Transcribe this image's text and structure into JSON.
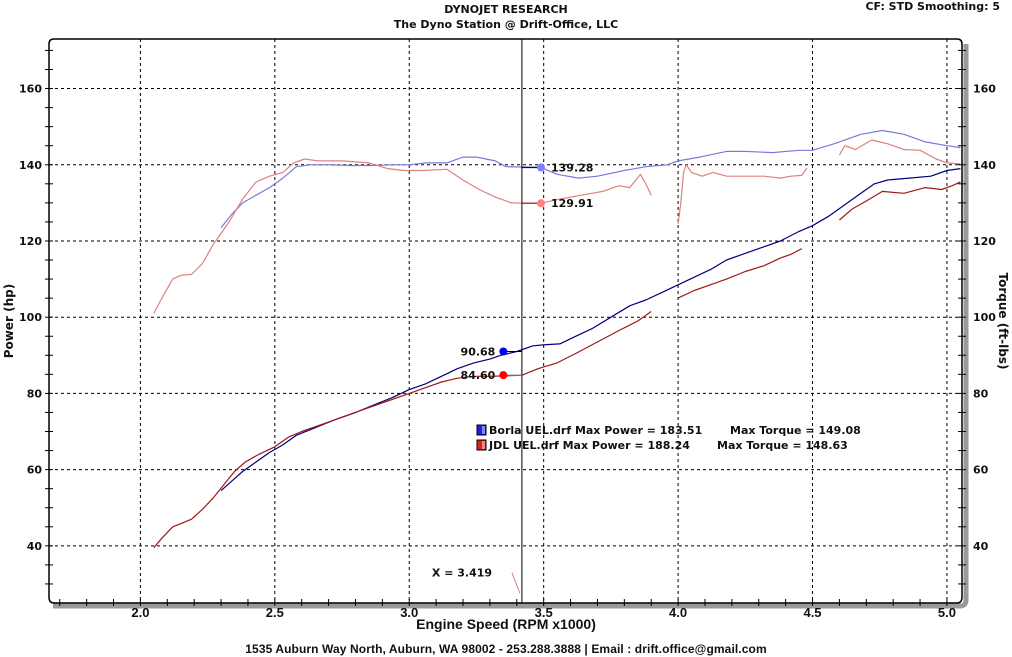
{
  "header": {
    "title": "DYNOJET RESEARCH",
    "subtitle": "The Dyno Station @ Drift-Office, LLC",
    "cf_info": "CF: STD  Smoothing: 5"
  },
  "footer": {
    "text": "1535 Auburn Way North, Auburn, WA 98002 - 253.288.3888 | Email : drift.office@gmail.com"
  },
  "chart_data": {
    "type": "line",
    "title": "DYNOJET RESEARCH",
    "xlabel": "Engine Speed (RPM x1000)",
    "ylabel": "Power (hp)",
    "y2label": "Torque (ft-lbs)",
    "xlim": [
      1.66,
      5.056
    ],
    "ylim": [
      25,
      173
    ],
    "y2lim": [
      25,
      173
    ],
    "grid": true,
    "xticks": [
      "2.0",
      "2.5",
      "3.0",
      "3.5",
      "4.0",
      "4.5",
      "5.0"
    ],
    "xtick_values": [
      2.0,
      2.5,
      3.0,
      3.5,
      4.0,
      4.5,
      5.0
    ],
    "yticks": [
      "40",
      "60",
      "80",
      "100",
      "120",
      "140",
      "160"
    ],
    "ytick_values": [
      40,
      60,
      80,
      100,
      120,
      140,
      160
    ],
    "legend_position": "center",
    "legend": [
      {
        "file": "Borla UEL.drf",
        "label": "Borla UEL.drf Max Power = 183.51",
        "torque_label": "Max Torque = 149.08",
        "color": "#2020e0"
      },
      {
        "file": "JDL UEL.drf",
        "label": "JDL UEL.drf Max Power = 188.24",
        "torque_label": "Max Torque = 148.63",
        "color": "#e02020"
      }
    ],
    "cursor": {
      "x": 3.419,
      "label": "X = 3.419"
    },
    "annotations": [
      {
        "series": "borla_torque",
        "value": "139.28",
        "color": "#7f7fff"
      },
      {
        "series": "jdl_torque",
        "value": "129.91",
        "color": "#ff7f7f"
      },
      {
        "series": "borla_power",
        "value": "90.68",
        "color": "#0000ff"
      },
      {
        "series": "jdl_power",
        "value": "84.60",
        "color": "#ff0000"
      }
    ],
    "series": [
      {
        "name": "Borla Torque",
        "id": "borla_torque",
        "color": "#7a7adc",
        "segments": [
          [
            [
              2.3,
              123.5
            ],
            [
              2.34,
              127.0
            ],
            [
              2.38,
              130.0
            ],
            [
              2.43,
              132.0
            ],
            [
              2.48,
              134.0
            ],
            [
              2.53,
              136.5
            ],
            [
              2.58,
              139.5
            ],
            [
              2.63,
              140.0
            ],
            [
              2.7,
              140.0
            ],
            [
              2.78,
              139.8
            ],
            [
              2.86,
              139.8
            ],
            [
              2.94,
              140.0
            ],
            [
              3.0,
              140.0
            ],
            [
              3.06,
              140.5
            ],
            [
              3.14,
              140.5
            ],
            [
              3.2,
              142.0
            ],
            [
              3.25,
              142.0
            ],
            [
              3.32,
              141.0
            ],
            [
              3.36,
              139.5
            ],
            [
              3.42,
              139.4
            ],
            [
              3.49,
              139.3
            ],
            [
              3.55,
              137.5
            ],
            [
              3.63,
              136.5
            ],
            [
              3.7,
              137.0
            ],
            [
              3.8,
              138.5
            ],
            [
              3.88,
              139.5
            ],
            [
              3.96,
              140.0
            ],
            [
              4.0,
              141.0
            ],
            [
              4.08,
              142.0
            ],
            [
              4.18,
              143.5
            ],
            [
              4.25,
              143.5
            ],
            [
              4.35,
              143.2
            ],
            [
              4.45,
              143.8
            ],
            [
              4.5,
              143.8
            ],
            [
              4.58,
              145.5
            ],
            [
              4.68,
              148.0
            ],
            [
              4.76,
              149.0
            ],
            [
              4.84,
              148.0
            ],
            [
              4.92,
              146.0
            ],
            [
              5.0,
              145.0
            ],
            [
              5.05,
              144.5
            ]
          ]
        ]
      },
      {
        "name": "JDL Torque",
        "id": "jdl_torque",
        "color": "#e08080",
        "segments": [
          [
            [
              2.05,
              101.0
            ],
            [
              2.08,
              105.0
            ],
            [
              2.12,
              110.0
            ],
            [
              2.15,
              111.0
            ],
            [
              2.19,
              111.2
            ],
            [
              2.23,
              114.0
            ],
            [
              2.27,
              119.0
            ],
            [
              2.33,
              125.0
            ],
            [
              2.38,
              131.0
            ],
            [
              2.43,
              135.5
            ],
            [
              2.48,
              137.0
            ],
            [
              2.53,
              138.0
            ],
            [
              2.57,
              140.5
            ],
            [
              2.61,
              141.5
            ],
            [
              2.66,
              141.0
            ],
            [
              2.75,
              141.0
            ],
            [
              2.85,
              140.5
            ],
            [
              2.92,
              139.0
            ],
            [
              2.98,
              138.5
            ],
            [
              3.05,
              138.5
            ],
            [
              3.14,
              138.8
            ],
            [
              3.2,
              136.0
            ],
            [
              3.26,
              133.5
            ],
            [
              3.32,
              131.5
            ],
            [
              3.38,
              130.0
            ],
            [
              3.42,
              129.9
            ],
            [
              3.49,
              129.9
            ],
            [
              3.56,
              131.0
            ],
            [
              3.64,
              132.0
            ],
            [
              3.72,
              133.0
            ],
            [
              3.78,
              134.5
            ],
            [
              3.82,
              134.0
            ],
            [
              3.86,
              137.5
            ],
            [
              3.88,
              135.0
            ],
            [
              3.9,
              132.0
            ]
          ],
          [
            [
              4.0,
              124.5
            ],
            [
              4.01,
              130.0
            ],
            [
              4.02,
              138.0
            ],
            [
              4.03,
              140.0
            ],
            [
              4.05,
              138.0
            ],
            [
              4.09,
              137.0
            ],
            [
              4.13,
              138.0
            ],
            [
              4.18,
              137.0
            ],
            [
              4.25,
              137.0
            ],
            [
              4.32,
              137.0
            ],
            [
              4.38,
              136.5
            ],
            [
              4.42,
              137.0
            ],
            [
              4.46,
              137.2
            ],
            [
              4.48,
              139.2
            ]
          ],
          [
            [
              4.6,
              142.5
            ],
            [
              4.62,
              145.0
            ],
            [
              4.66,
              144.0
            ],
            [
              4.72,
              146.5
            ],
            [
              4.78,
              145.5
            ],
            [
              4.84,
              144.0
            ],
            [
              4.9,
              143.8
            ],
            [
              4.96,
              141.5
            ],
            [
              5.0,
              140.5
            ],
            [
              5.05,
              140.2
            ]
          ]
        ]
      },
      {
        "name": "Borla Power",
        "id": "borla_power",
        "color": "#000080",
        "segments": [
          [
            [
              2.3,
              54.5
            ],
            [
              2.34,
              57.0
            ],
            [
              2.38,
              59.5
            ],
            [
              2.43,
              62.0
            ],
            [
              2.48,
              64.5
            ],
            [
              2.53,
              66.5
            ],
            [
              2.58,
              69.0
            ],
            [
              2.65,
              71.0
            ],
            [
              2.72,
              73.0
            ],
            [
              2.8,
              75.0
            ],
            [
              2.87,
              77.0
            ],
            [
              2.94,
              79.0
            ],
            [
              3.0,
              81.0
            ],
            [
              3.06,
              82.5
            ],
            [
              3.12,
              84.5
            ],
            [
              3.18,
              86.5
            ],
            [
              3.24,
              88.0
            ],
            [
              3.3,
              89.0
            ],
            [
              3.34,
              90.0
            ],
            [
              3.4,
              91.0
            ],
            [
              3.46,
              92.5
            ],
            [
              3.51,
              92.8
            ],
            [
              3.56,
              93.0
            ],
            [
              3.62,
              95.0
            ],
            [
              3.68,
              97.0
            ],
            [
              3.75,
              100.0
            ],
            [
              3.82,
              103.0
            ],
            [
              3.88,
              104.5
            ],
            [
              3.94,
              106.5
            ],
            [
              4.0,
              108.5
            ],
            [
              4.06,
              110.5
            ],
            [
              4.12,
              112.5
            ],
            [
              4.18,
              115.0
            ],
            [
              4.24,
              116.5
            ],
            [
              4.3,
              118.0
            ],
            [
              4.38,
              120.0
            ],
            [
              4.45,
              122.5
            ],
            [
              4.5,
              124.0
            ],
            [
              4.56,
              126.5
            ],
            [
              4.62,
              129.5
            ],
            [
              4.68,
              132.5
            ],
            [
              4.73,
              135.0
            ],
            [
              4.78,
              136.0
            ],
            [
              4.86,
              136.5
            ],
            [
              4.94,
              137.0
            ],
            [
              5.0,
              138.5
            ],
            [
              5.05,
              139.0
            ]
          ]
        ]
      },
      {
        "name": "JDL Power",
        "id": "jdl_power",
        "color": "#a01818",
        "segments": [
          [
            [
              2.05,
              39.5
            ],
            [
              2.08,
              42.0
            ],
            [
              2.12,
              45.0
            ],
            [
              2.15,
              45.8
            ],
            [
              2.19,
              47.0
            ],
            [
              2.23,
              49.5
            ],
            [
              2.27,
              52.5
            ],
            [
              2.31,
              56.0
            ],
            [
              2.35,
              59.5
            ],
            [
              2.39,
              62.0
            ],
            [
              2.44,
              64.0
            ],
            [
              2.5,
              66.0
            ],
            [
              2.55,
              68.5
            ],
            [
              2.6,
              70.0
            ],
            [
              2.68,
              72.0
            ],
            [
              2.76,
              74.0
            ],
            [
              2.84,
              76.0
            ],
            [
              2.92,
              78.0
            ],
            [
              3.0,
              80.0
            ],
            [
              3.06,
              81.5
            ],
            [
              3.12,
              83.0
            ],
            [
              3.18,
              84.0
            ],
            [
              3.24,
              84.5
            ],
            [
              3.3,
              84.5
            ],
            [
              3.36,
              84.6
            ],
            [
              3.42,
              84.8
            ],
            [
              3.48,
              86.5
            ],
            [
              3.55,
              88.0
            ],
            [
              3.62,
              90.5
            ],
            [
              3.7,
              93.5
            ],
            [
              3.78,
              96.5
            ],
            [
              3.85,
              99.0
            ],
            [
              3.9,
              101.5
            ]
          ],
          [
            [
              4.0,
              105.0
            ],
            [
              4.06,
              107.0
            ],
            [
              4.12,
              108.5
            ],
            [
              4.18,
              110.0
            ],
            [
              4.25,
              112.0
            ],
            [
              4.32,
              113.5
            ],
            [
              4.38,
              115.5
            ],
            [
              4.42,
              116.5
            ],
            [
              4.46,
              118.0
            ]
          ],
          [
            [
              4.6,
              125.5
            ],
            [
              4.65,
              128.5
            ],
            [
              4.7,
              130.5
            ],
            [
              4.76,
              133.0
            ],
            [
              4.84,
              132.5
            ],
            [
              4.92,
              134.0
            ],
            [
              4.98,
              133.5
            ],
            [
              5.02,
              134.5
            ],
            [
              5.05,
              135.5
            ]
          ]
        ]
      }
    ]
  }
}
